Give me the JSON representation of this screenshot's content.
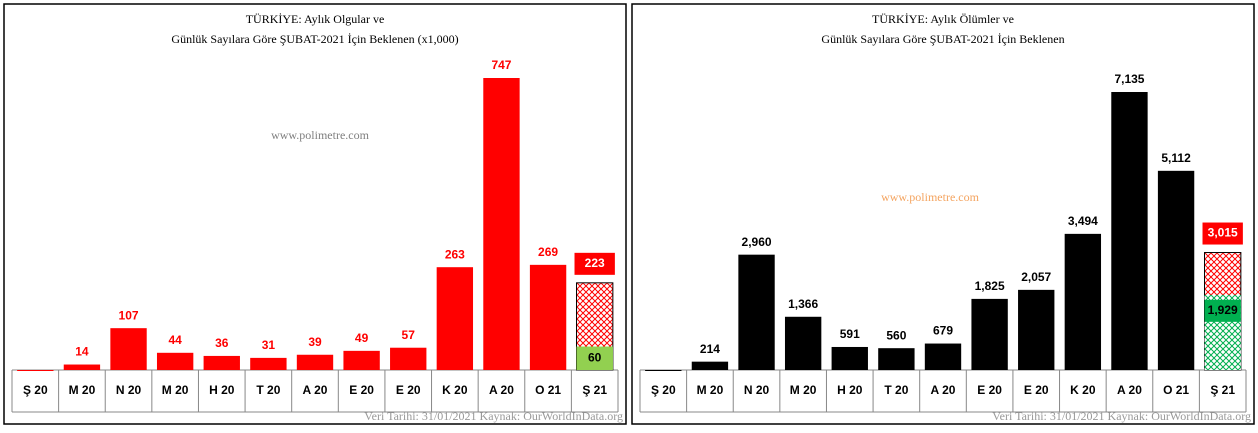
{
  "chart_data": [
    {
      "type": "bar",
      "title": [
        "TÜRKİYE: Aylık Olgular ve",
        "Günlük Sayılara Göre ŞUBAT-2021 İçin Beklenen (x1,000)"
      ],
      "categories": [
        "Ş 20",
        "M 20",
        "N 20",
        "M 20",
        "H 20",
        "T 20",
        "A 20",
        "E 20",
        "E 20",
        "K 20",
        "A 20",
        "O 21",
        "Ş 21"
      ],
      "values": [
        0,
        14,
        107,
        44,
        36,
        31,
        39,
        49,
        57,
        263,
        747,
        269,
        null
      ],
      "value_labels": [
        null,
        "14",
        "107",
        "44",
        "36",
        "31",
        "39",
        "49",
        "57",
        "263",
        "747",
        "269",
        null
      ],
      "color": "#ff0000",
      "label_color": "#ff0000",
      "expected_total": 223,
      "expected_actual": 60,
      "expected_color": "#ff0000",
      "actual_color": "#92d050",
      "actual_hatched": false,
      "watermark": "www.polimetre.com",
      "watermark_color": "#7f7f7f",
      "source": "Veri Tarihi: 31/01/2021 Kaynak: OurWorldInData.org"
    },
    {
      "type": "bar",
      "title": [
        "TÜRKİYE: Aylık Ölümler ve",
        "Günlük Sayılara Göre ŞUBAT-2021 İçin Beklenen"
      ],
      "categories": [
        "Ş 20",
        "M 20",
        "N 20",
        "M 20",
        "H 20",
        "T 20",
        "A 20",
        "E 20",
        "E 20",
        "K 20",
        "A 20",
        "O 21",
        "Ş 21"
      ],
      "values": [
        0,
        214,
        2960,
        1366,
        591,
        560,
        679,
        1825,
        2057,
        3494,
        7135,
        5112,
        null
      ],
      "value_labels": [
        null,
        "214",
        "2,960",
        "1,366",
        "591",
        "560",
        "679",
        "1,825",
        "2,057",
        "3,494",
        "7,135",
        "5,112",
        null
      ],
      "color": "#000000",
      "label_color": "#000000",
      "expected_total": 3015,
      "expected_total_label": "3,015",
      "expected_actual": 1929,
      "expected_actual_label": "1,929",
      "expected_color": "#ff0000",
      "actual_color": "#00b050",
      "actual_hatched": true,
      "watermark": "www.polimetre.com",
      "watermark_color": "#f4a460",
      "source": "Veri Tarihi: 31/01/2021 Kaynak: OurWorldInData.org"
    }
  ]
}
